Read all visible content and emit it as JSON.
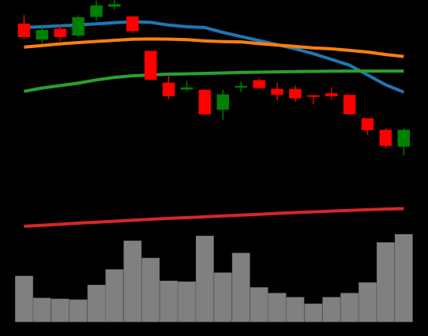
{
  "chart_data": {
    "type": "candlestick",
    "background": "#000000",
    "grid": false,
    "legend": "none",
    "price_ylim": [
      -35,
      100
    ],
    "volume_ylim": [
      0,
      110
    ],
    "colors": {
      "up": "#008000",
      "down": "#ff0000",
      "volume_bar": "#808080",
      "ma_blue": "#1f77b4",
      "ma_orange": "#ff7f0e",
      "ma_green": "#2ca02c",
      "ma_red": "#d62728"
    },
    "candles": [
      {
        "open": 90.3,
        "high": 95.6,
        "low": 80.9,
        "close": 82.3,
        "volume": 56
      },
      {
        "open": 80.7,
        "high": 88.4,
        "low": 78.3,
        "close": 86.3,
        "volume": 29
      },
      {
        "open": 87.1,
        "high": 89.8,
        "low": 79.7,
        "close": 82.3,
        "volume": 28
      },
      {
        "open": 83.2,
        "high": 95.4,
        "low": 82.3,
        "close": 94.1,
        "volume": 27
      },
      {
        "open": 94.6,
        "high": 104.6,
        "low": 92.4,
        "close": 101.4,
        "volume": 45
      },
      {
        "open": 100.8,
        "high": 107.4,
        "low": 98.9,
        "close": 102.1,
        "volume": 64
      },
      {
        "open": 94.7,
        "high": 94.8,
        "low": 84.5,
        "close": 85.9,
        "volume": 99
      },
      {
        "open": 73.6,
        "high": 73.7,
        "low": 55.9,
        "close": 56.2,
        "volume": 78
      },
      {
        "open": 54.2,
        "high": 58.9,
        "low": 44.1,
        "close": 46.1,
        "volume": 50
      },
      {
        "open": 50.2,
        "high": 55.4,
        "low": 49.2,
        "close": 51.3,
        "volume": 49
      },
      {
        "open": 49.8,
        "high": 49.9,
        "low": 34.6,
        "close": 35.0,
        "volume": 105
      },
      {
        "open": 37.8,
        "high": 50.0,
        "low": 31.7,
        "close": 47.0,
        "volume": 60
      },
      {
        "open": 51.6,
        "high": 55.0,
        "low": 48.4,
        "close": 52.1,
        "volume": 84
      },
      {
        "open": 55.7,
        "high": 56.9,
        "low": 50.3,
        "close": 51.1,
        "volume": 42
      },
      {
        "open": 50.4,
        "high": 54.2,
        "low": 43.6,
        "close": 47.0,
        "volume": 35
      },
      {
        "open": 50.3,
        "high": 52.6,
        "low": 42.7,
        "close": 44.8,
        "volume": 30
      },
      {
        "open": 46.5,
        "high": 46.6,
        "low": 41.1,
        "close": 46.0,
        "volume": 22
      },
      {
        "open": 47.7,
        "high": 51.3,
        "low": 44.0,
        "close": 46.1,
        "volume": 30
      },
      {
        "open": 46.7,
        "high": 46.8,
        "low": 34.9,
        "close": 35.1,
        "volume": 35
      },
      {
        "open": 32.4,
        "high": 32.5,
        "low": 22.3,
        "close": 25.4,
        "volume": 48
      },
      {
        "open": 25.3,
        "high": 26.5,
        "low": 14.1,
        "close": 15.8,
        "volume": 97
      },
      {
        "open": 15.3,
        "high": 26.4,
        "low": 9.8,
        "close": 25.3,
        "volume": 107
      }
    ],
    "moving_averages": [
      {
        "color": "#1f77b4",
        "values": [
          88,
          88.5,
          89,
          89.6,
          90.2,
          91,
          91.5,
          91.2,
          89.5,
          88.5,
          88,
          85,
          82.5,
          80,
          77.5,
          75,
          72,
          68.5,
          65,
          59,
          53,
          48.5
        ]
      },
      {
        "color": "#ff7f0e",
        "values": [
          76,
          77,
          78,
          78.8,
          79.5,
          80.2,
          80.8,
          81,
          80.9,
          80.6,
          79.8,
          79.4,
          79.2,
          78.2,
          77.3,
          76.4,
          75.5,
          75,
          74,
          73,
          71.5,
          70.3
        ]
      },
      {
        "color": "#2ca02c",
        "values": [
          49,
          51,
          52.5,
          54,
          56,
          57.5,
          58.5,
          59,
          59.5,
          59.7,
          60,
          60.2,
          60.5,
          60.7,
          60.9,
          61.1,
          61.2,
          61.3,
          61.4,
          61.4,
          61.4,
          61.4
        ]
      },
      {
        "color": "#d62728",
        "values": [
          -33.5,
          -32.9,
          -32.3,
          -31.6,
          -31,
          -30.4,
          -29.8,
          -29.2,
          -28.7,
          -28.2,
          -27.7,
          -27.2,
          -26.7,
          -26.2,
          -25.6,
          -25.1,
          -24.7,
          -24.2,
          -23.8,
          -23.4,
          -23,
          -22.7
        ]
      }
    ]
  }
}
